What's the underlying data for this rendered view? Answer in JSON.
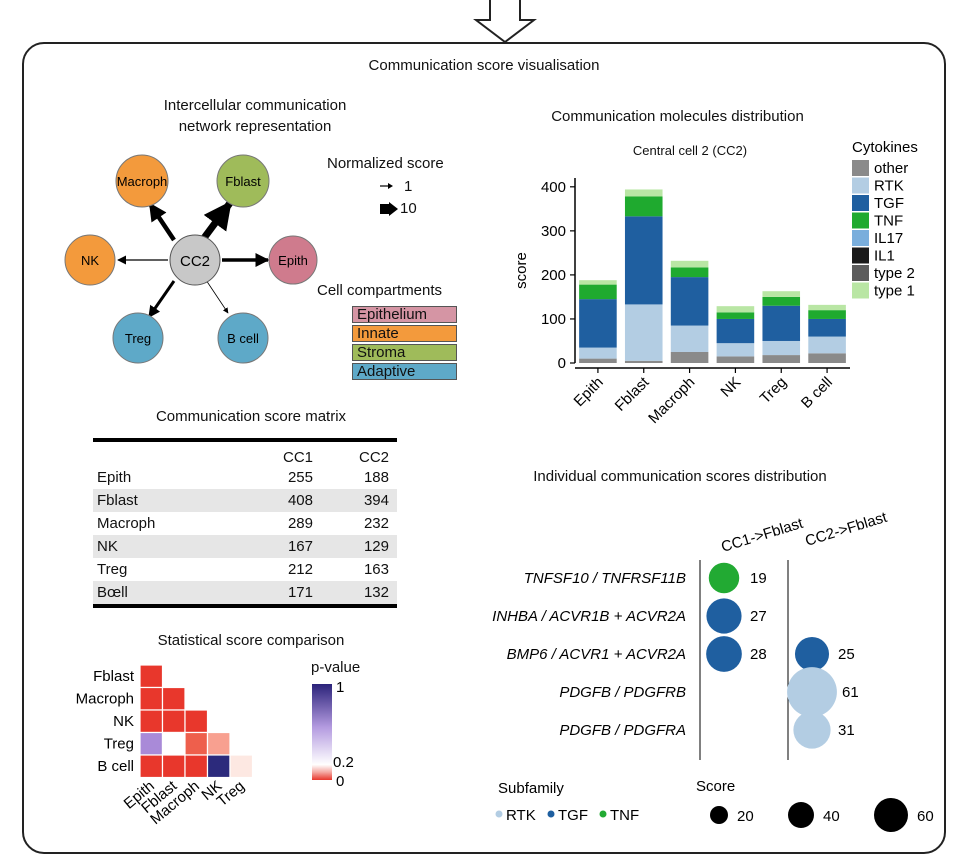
{
  "main_title": "Communication score visualisation",
  "network": {
    "title_line1": "Intercellular communication",
    "title_line2": "network representation",
    "center": "CC2",
    "nodes": {
      "macroph": "Macroph",
      "fblast": "Fblast",
      "nk": "NK",
      "epith": "Epith",
      "treg": "Treg",
      "bcell": "B cell"
    },
    "norm_title": "Normalized score",
    "norm_small": "1",
    "norm_large": "10",
    "compart_title": "Cell compartments",
    "compartments": [
      {
        "label": "Epithelium",
        "color": "#d595a4"
      },
      {
        "label": "Innate",
        "color": "#f39a3c"
      },
      {
        "label": "Stroma",
        "color": "#9fbb5a"
      },
      {
        "label": "Adaptive",
        "color": "#5ea9c8"
      }
    ]
  },
  "matrix": {
    "title": "Communication score matrix",
    "col1": "CC1",
    "col2": "CC2",
    "rows": [
      {
        "name": "Epith",
        "cc1": "255",
        "cc2": "188"
      },
      {
        "name": "Fblast",
        "cc1": "408",
        "cc2": "394"
      },
      {
        "name": "Macroph",
        "cc1": "289",
        "cc2": "232"
      },
      {
        "name": "NK",
        "cc1": "167",
        "cc2": "129"
      },
      {
        "name": "Treg",
        "cc1": "212",
        "cc2": "163"
      },
      {
        "name": "Bœll",
        "cc1": "171",
        "cc2": "132"
      }
    ]
  },
  "stat": {
    "title": "Statistical score comparison",
    "rows": [
      "Fblast",
      "Macroph",
      "NK",
      "Treg",
      "B cell"
    ],
    "cols": [
      "Epith",
      "Fblast",
      "Macroph",
      "NK",
      "Treg"
    ],
    "cells": [
      [
        "#e8372c",
        null,
        null,
        null,
        null
      ],
      [
        "#e8372c",
        "#e8372c",
        null,
        null,
        null
      ],
      [
        "#e8372c",
        "#e8372c",
        "#e8372c",
        null,
        null
      ],
      [
        "#a98ad8",
        "#ffffff",
        "#ee5f4c",
        "#f8a090",
        null
      ],
      [
        "#e8372c",
        "#e8372c",
        "#e8372c",
        "#2c2a7c",
        "#fde8e2"
      ]
    ],
    "legend_title": "p-value",
    "legend_top": "1",
    "legend_mid": "0.2",
    "legend_bottom": "0"
  },
  "chart_data": {
    "type": "bar",
    "title": "Communication molecules distribution",
    "subtitle": "Central cell 2 (CC2)",
    "ylabel": "score",
    "xlabel": "",
    "ylim": [
      0,
      420
    ],
    "yticks": [
      0,
      100,
      200,
      300,
      400
    ],
    "categories": [
      "Epith",
      "Fblast",
      "Macroph",
      "NK",
      "Treg",
      "B cell"
    ],
    "legend_title": "Cytokines",
    "legend": [
      {
        "name": "other",
        "color": "#8a8a8a"
      },
      {
        "name": "RTK",
        "color": "#b3cde3"
      },
      {
        "name": "TGF",
        "color": "#1f5fa0"
      },
      {
        "name": "TNF",
        "color": "#1faa2f"
      },
      {
        "name": "IL17",
        "color": "#7aaedc"
      },
      {
        "name": "IL1",
        "color": "#1a1a1a"
      },
      {
        "name": "type 2",
        "color": "#5c5c5c"
      },
      {
        "name": "type 1",
        "color": "#b9e6a4"
      }
    ],
    "series": [
      {
        "name": "other",
        "values": [
          10,
          5,
          25,
          15,
          18,
          22
        ]
      },
      {
        "name": "RTK",
        "values": [
          25,
          128,
          60,
          30,
          32,
          38
        ]
      },
      {
        "name": "TGF",
        "values": [
          110,
          200,
          110,
          55,
          80,
          40
        ]
      },
      {
        "name": "TNF",
        "values": [
          33,
          45,
          22,
          15,
          20,
          20
        ]
      },
      {
        "name": "type 1",
        "values": [
          10,
          16,
          15,
          14,
          13,
          12
        ]
      }
    ]
  },
  "individual": {
    "title": "Individual communication scores distribution",
    "col1": "CC1->Fblast",
    "col2": "CC2->Fblast",
    "pairs": [
      "TNFSF10 / TNFRSF11B",
      "INHBA / ACVR1B + ACVR2A",
      "BMP6 / ACVR1 + ACVR2A",
      "PDGFB / PDGFRB",
      "PDGFB / PDGFRA"
    ],
    "dots": [
      {
        "row": 0,
        "col": 0,
        "score": 19,
        "label": "19",
        "color": "#22aa33"
      },
      {
        "row": 1,
        "col": 0,
        "score": 27,
        "label": "27",
        "color": "#1f5fa0"
      },
      {
        "row": 2,
        "col": 0,
        "score": 28,
        "label": "28",
        "color": "#1f5fa0"
      },
      {
        "row": 2,
        "col": 1,
        "score": 25,
        "label": "25",
        "color": "#1f5fa0"
      },
      {
        "row": 3,
        "col": 1,
        "score": 61,
        "label": "61",
        "color": "#b3cde3"
      },
      {
        "row": 4,
        "col": 1,
        "score": 31,
        "label": "31",
        "color": "#b3cde3"
      }
    ],
    "subfamily_title": "Subfamily",
    "subfamily": [
      {
        "label": "RTK",
        "color": "#b3cde3"
      },
      {
        "label": "TGF",
        "color": "#1f5fa0"
      },
      {
        "label": "TNF",
        "color": "#22aa33"
      }
    ],
    "score_title": "Score",
    "score_legend": [
      {
        "value": 20,
        "label": "20"
      },
      {
        "value": 40,
        "label": "40"
      },
      {
        "value": 60,
        "label": "60"
      }
    ]
  }
}
